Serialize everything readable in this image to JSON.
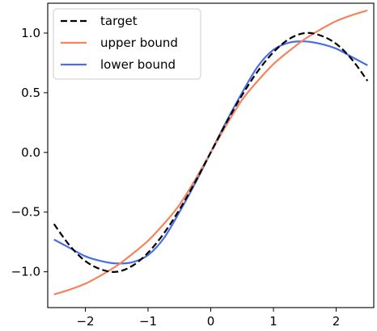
{
  "chart_data": {
    "type": "line",
    "title": "",
    "xlabel": "",
    "ylabel": "",
    "xlim": [
      -2.6,
      2.6
    ],
    "ylim": [
      -1.3,
      1.25
    ],
    "grid": false,
    "legend_position": "top-left",
    "x_ticks": [
      -2,
      -1,
      0,
      1,
      2
    ],
    "x_tick_labels": [
      "−2",
      "−1",
      "0",
      "1",
      "2"
    ],
    "y_ticks": [
      -1.0,
      -0.5,
      0.0,
      0.5,
      1.0
    ],
    "y_tick_labels": [
      "−1.0",
      "−0.5",
      "0.0",
      "0.5",
      "1.0"
    ],
    "series": [
      {
        "name": "target",
        "color": "#000000",
        "dash": true,
        "x": [
          -2.5,
          -2.25,
          -2.0,
          -1.75,
          -1.5,
          -1.25,
          -1.0,
          -0.75,
          -0.5,
          -0.25,
          0.0,
          0.25,
          0.5,
          0.75,
          1.0,
          1.25,
          1.5,
          1.75,
          2.0,
          2.25,
          2.5
        ],
        "y": [
          -0.6,
          -0.78,
          -0.91,
          -0.98,
          -1.0,
          -0.95,
          -0.84,
          -0.68,
          -0.48,
          -0.25,
          0.0,
          0.25,
          0.48,
          0.68,
          0.84,
          0.95,
          1.0,
          0.98,
          0.91,
          0.78,
          0.6
        ]
      },
      {
        "name": "upper bound",
        "color": "#f4845c",
        "dash": false,
        "x": [
          -2.5,
          -2.25,
          -2.0,
          -1.75,
          -1.5,
          -1.25,
          -1.0,
          -0.75,
          -0.5,
          -0.25,
          0.0,
          0.25,
          0.5,
          0.75,
          1.0,
          1.25,
          1.5,
          1.75,
          2.0,
          2.25,
          2.5
        ],
        "y": [
          -1.19,
          -1.15,
          -1.1,
          -1.03,
          -0.95,
          -0.85,
          -0.74,
          -0.6,
          -0.44,
          -0.23,
          0.0,
          0.23,
          0.44,
          0.6,
          0.74,
          0.85,
          0.95,
          1.03,
          1.1,
          1.15,
          1.19
        ]
      },
      {
        "name": "lower bound",
        "color": "#4a6fe3",
        "dash": false,
        "x": [
          -2.5,
          -2.25,
          -2.0,
          -1.75,
          -1.5,
          -1.25,
          -1.0,
          -0.75,
          -0.5,
          -0.25,
          0.0,
          0.25,
          0.5,
          0.75,
          1.0,
          1.25,
          1.5,
          1.75,
          2.0,
          2.25,
          2.5
        ],
        "y": [
          -0.73,
          -0.8,
          -0.87,
          -0.91,
          -0.93,
          -0.92,
          -0.86,
          -0.72,
          -0.5,
          -0.26,
          0.0,
          0.26,
          0.5,
          0.72,
          0.86,
          0.92,
          0.93,
          0.91,
          0.87,
          0.8,
          0.73
        ]
      }
    ]
  }
}
